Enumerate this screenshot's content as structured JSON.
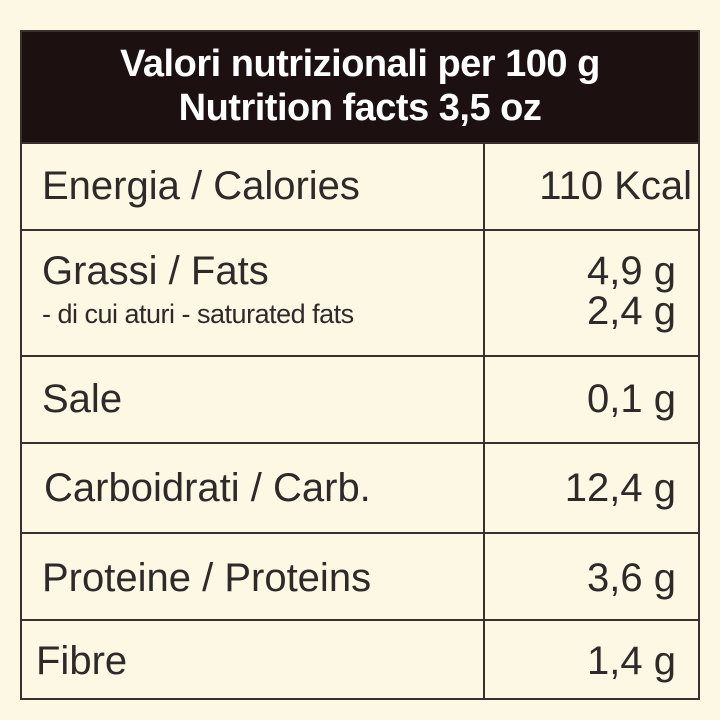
{
  "header": {
    "title": [
      "Valori nutrizionali per 100 g",
      "Nutrition facts 3,5 oz"
    ]
  },
  "table": {
    "rows": [
      [
        "Energia / Calories",
        "110 Kcal"
      ],
      [
        "Grassi / Fats",
        "4,9 g",
        "- di cui aturi - saturated fats",
        "2,4 g"
      ],
      [
        "Sale",
        "0,1 g"
      ],
      [
        "Carboidrati / Carb.",
        "12,4 g"
      ],
      [
        "Proteine / Proteins",
        "3,6 g"
      ],
      [
        "Fibre",
        "1,4 g"
      ]
    ]
  }
}
